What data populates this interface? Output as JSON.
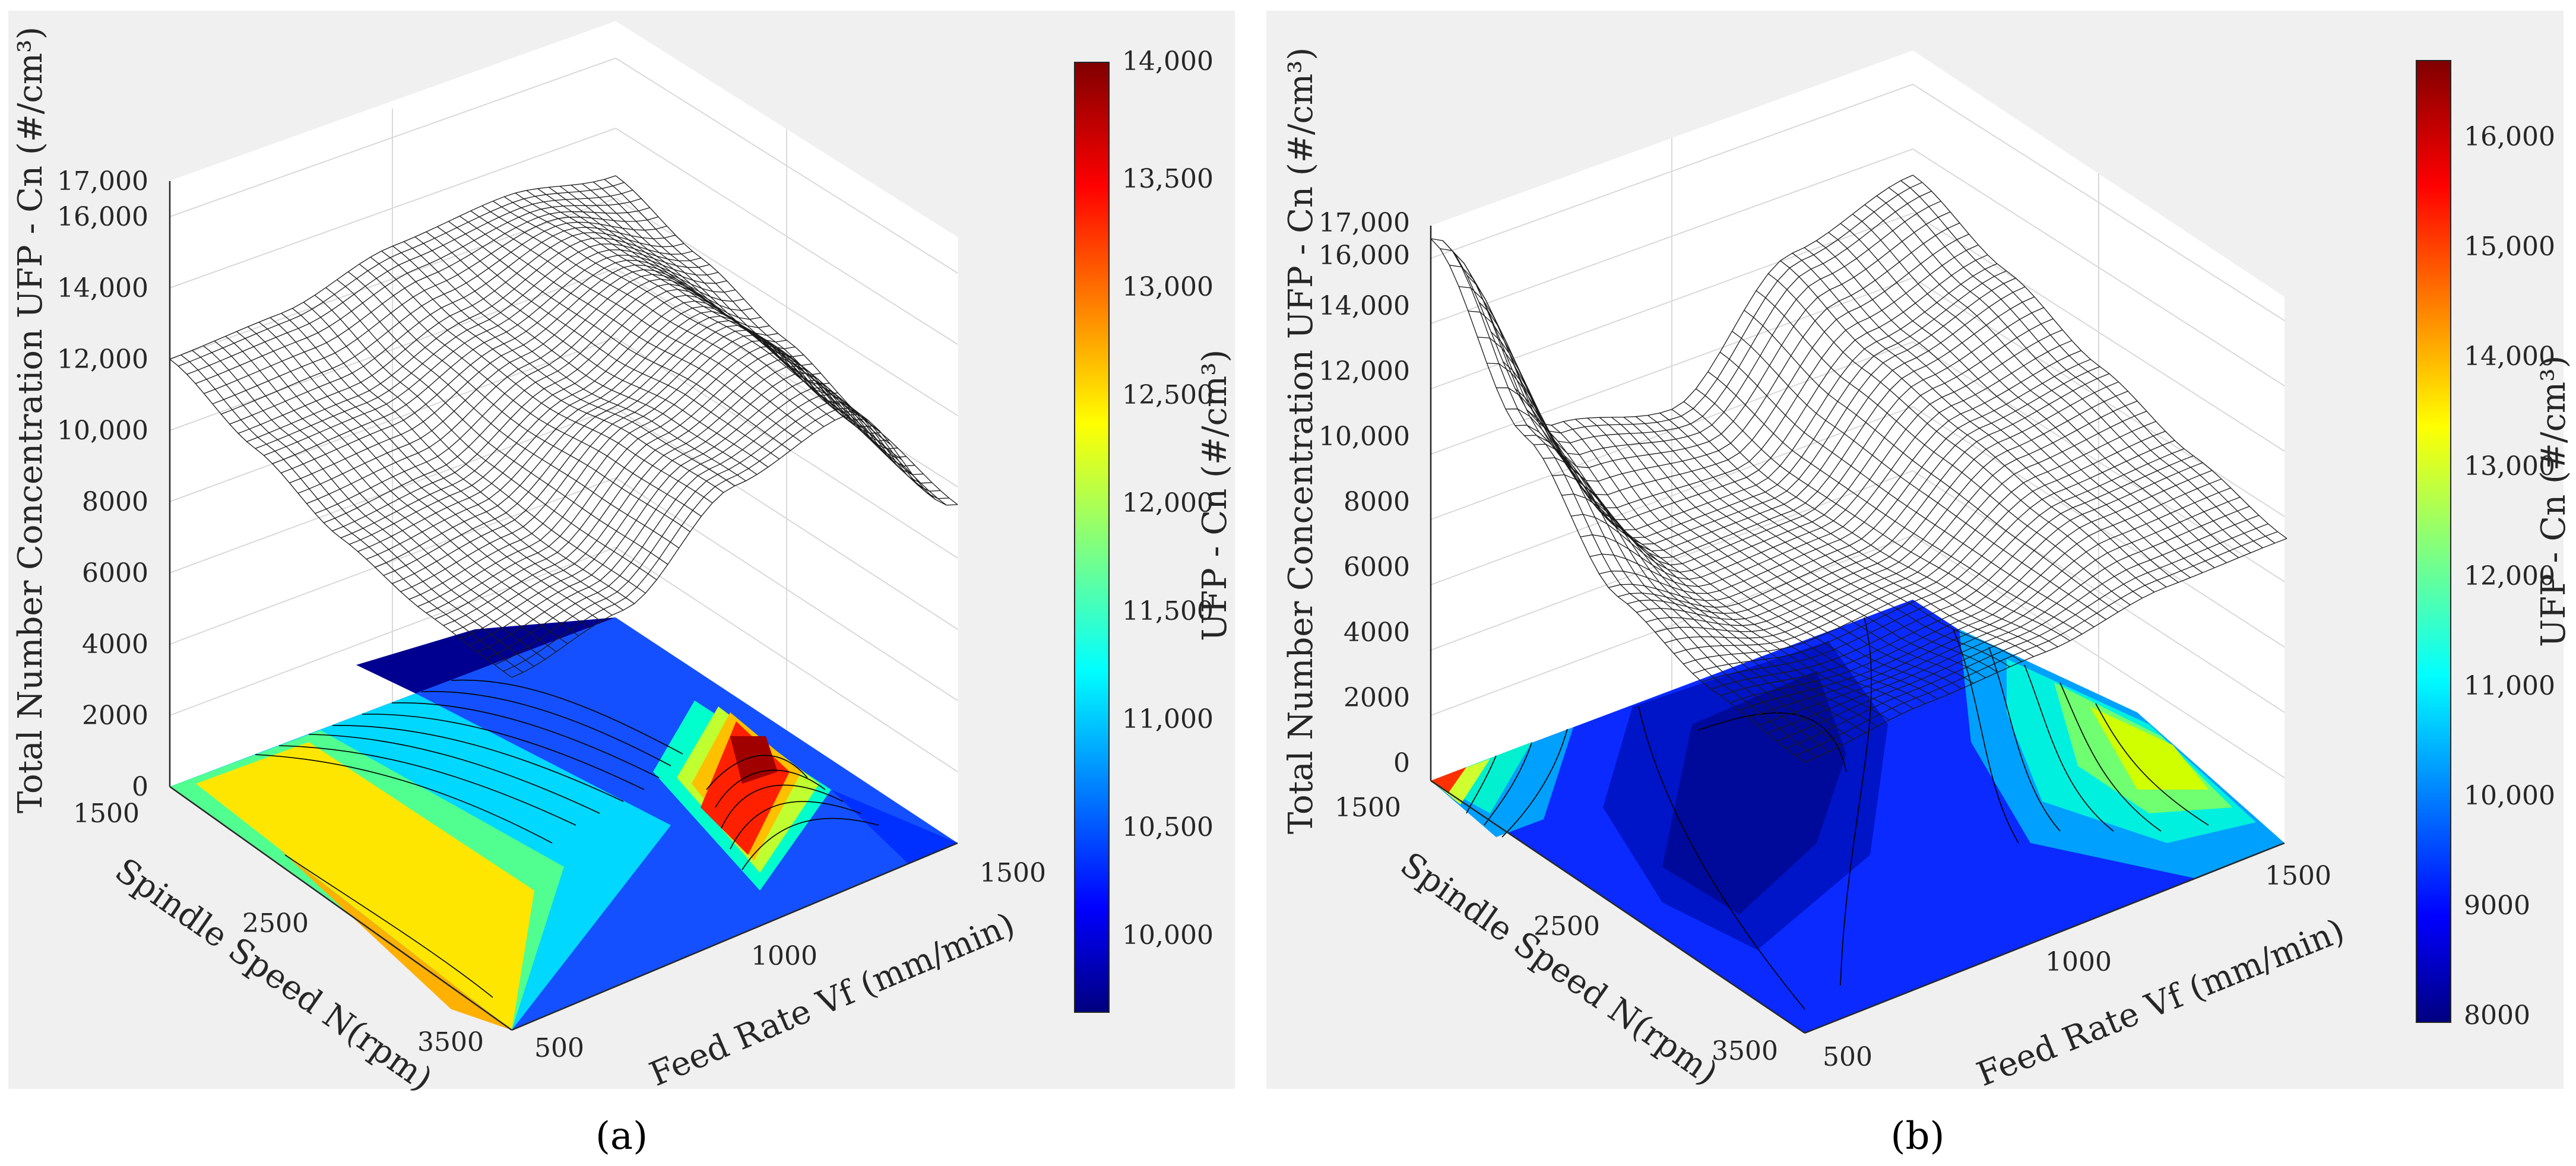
{
  "chart_data": [
    {
      "type": "surface3d",
      "caption": "(a)",
      "xlabel": "Feed Rate Vf (mm/min)",
      "ylabel": "Spindle Speed N(rpm)",
      "zlabel": "Total Number Concentration UFP - Cn (#/cm³)",
      "x_ticks": [
        "500",
        "1000",
        "1500"
      ],
      "y_ticks": [
        "1500",
        "2500",
        "3500"
      ],
      "z_ticks": [
        "0",
        "2000",
        "4000",
        "6000",
        "8000",
        "10,000",
        "12,000",
        "14,000",
        "16,000",
        "17,000"
      ],
      "xlim": [
        500,
        1500
      ],
      "ylim": [
        1500,
        3500
      ],
      "zlim": [
        0,
        17000
      ],
      "colorbar": {
        "label": "UFP - Cn (#/cm³)",
        "ticks": [
          "10,000",
          "10,500",
          "11,000",
          "11,500",
          "12,000",
          "12,500",
          "13,000",
          "13,500",
          "14,000"
        ],
        "range": [
          9600,
          14000
        ]
      },
      "contours": "filled, projected on z = 0 plane, jet colormap",
      "surface_grid": {
        "feed_rate": [
          500,
          750,
          1000,
          1250,
          1500
        ],
        "spindle_speed": [
          1500,
          2000,
          2500,
          3000,
          3500
        ],
        "cn": [
          [
            12000,
            11200,
            10400,
            10000,
            9900
          ],
          [
            12100,
            11300,
            10700,
            10500,
            10600
          ],
          [
            12800,
            12300,
            12200,
            12700,
            12900
          ],
          [
            13000,
            13300,
            13600,
            13900,
            13700
          ],
          [
            12400,
            11800,
            11200,
            10500,
            10000
          ]
        ]
      }
    },
    {
      "type": "surface3d",
      "caption": "(b)",
      "xlabel": "Feed Rate Vf (mm/min)",
      "ylabel": "Spindle Speed N(rpm)",
      "zlabel": "Total Number Concentration UFP - Cn (#/cm³)",
      "x_ticks": [
        "500",
        "1000",
        "1500"
      ],
      "y_ticks": [
        "1500",
        "2500",
        "3500"
      ],
      "z_ticks": [
        "0",
        "2000",
        "4000",
        "6000",
        "8000",
        "10,000",
        "12,000",
        "14,000",
        "16,000",
        "17,000"
      ],
      "xlim": [
        500,
        1500
      ],
      "ylim": [
        1500,
        3500
      ],
      "zlim": [
        0,
        17000
      ],
      "colorbar": {
        "label": "UFP - Cn (#/cm³)",
        "ticks": [
          "8000",
          "9000",
          "10,000",
          "11,000",
          "12,000",
          "13,000",
          "14,000",
          "15,000",
          "16,000"
        ],
        "range": [
          7800,
          16600
        ]
      },
      "contours": "filled, projected on z = 0 plane, jet colormap",
      "surface_grid": {
        "feed_rate": [
          500,
          750,
          1000,
          1250,
          1500
        ],
        "spindle_speed": [
          1500,
          2000,
          2500,
          3000,
          3500
        ],
        "cn": [
          [
            16600,
            12500,
            9500,
            8600,
            8300
          ],
          [
            9500,
            8000,
            7900,
            8100,
            8700
          ],
          [
            8600,
            8000,
            8100,
            8400,
            8900
          ],
          [
            12000,
            11000,
            10500,
            10000,
            9500
          ],
          [
            13000,
            12000,
            11000,
            10200,
            9600
          ]
        ]
      }
    }
  ]
}
